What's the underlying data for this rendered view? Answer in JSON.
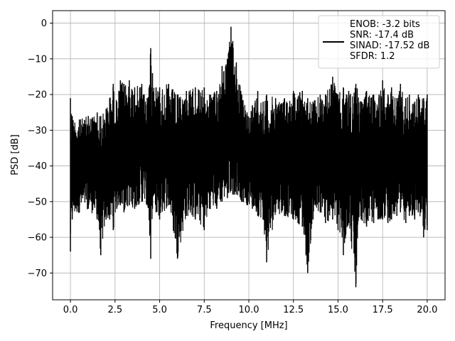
{
  "chart_data": {
    "type": "line",
    "title": "",
    "xlabel": "Frequency [MHz]",
    "ylabel": "PSD [dB]",
    "xlim": [
      -1.0,
      21.0
    ],
    "ylim": [
      -77.5,
      3.5
    ],
    "xticks": [
      0.0,
      2.5,
      5.0,
      7.5,
      10.0,
      12.5,
      15.0,
      17.5,
      20.0
    ],
    "xtick_labels": [
      "0.0",
      "2.5",
      "5.0",
      "7.5",
      "10.0",
      "12.5",
      "15.0",
      "17.5",
      "20.0"
    ],
    "yticks": [
      0,
      -10,
      -20,
      -30,
      -40,
      -50,
      -60,
      -70
    ],
    "ytick_labels": [
      "0",
      "−10",
      "−20",
      "−30",
      "−40",
      "−50",
      "−60",
      "−70"
    ],
    "grid": true,
    "legend": {
      "placement": "top-right",
      "entries": [
        "ENOB: -3.2 bits",
        "SNR: -17.4 dB",
        "SINAD: -17.52 dB",
        "SFDR: 1.2"
      ]
    },
    "series": [
      {
        "color": "#000000",
        "envelope": {
          "x": [
            0.0,
            0.1,
            0.5,
            1.0,
            1.5,
            1.7,
            2.0,
            2.2,
            2.4,
            2.6,
            2.8,
            3.0,
            3.3,
            3.6,
            4.0,
            4.3,
            4.5,
            4.6,
            4.8,
            5.0,
            5.5,
            6.0,
            6.5,
            7.0,
            7.5,
            7.8,
            8.2,
            8.5,
            8.8,
            9.0,
            9.1,
            9.3,
            9.6,
            9.9,
            10.2,
            10.5,
            10.8,
            11.0,
            11.5,
            12.0,
            12.5,
            13.0,
            13.3,
            13.6,
            14.0,
            14.3,
            14.7,
            15.0,
            15.3,
            15.6,
            16.0,
            16.3,
            16.6,
            17.0,
            17.3,
            17.5,
            17.8,
            18.0,
            18.3,
            18.5,
            18.8,
            19.0,
            19.3,
            19.5,
            19.8,
            20.0
          ],
          "upper": [
            -21,
            -26,
            -27,
            -26,
            -25,
            -26,
            -24,
            -21,
            -17,
            -22,
            -16,
            -17,
            -16,
            -18,
            -17,
            -21,
            -7,
            -14,
            -18,
            -18,
            -17,
            -20,
            -19,
            -18,
            -18,
            -20,
            -19,
            -12,
            -10,
            -1,
            -5,
            -11,
            -20,
            -25,
            -23,
            -19,
            -22,
            -20,
            -21,
            -21,
            -19,
            -19,
            -21,
            -22,
            -20,
            -20,
            -15,
            -20,
            -18,
            -19,
            -17,
            -22,
            -19,
            -20,
            -20,
            -16,
            -20,
            -18,
            -21,
            -17,
            -21,
            -20,
            -22,
            -20,
            -21,
            -20
          ],
          "lower": [
            -64,
            -55,
            -53,
            -52,
            -55,
            -65,
            -55,
            -55,
            -58,
            -52,
            -51,
            -53,
            -51,
            -52,
            -50,
            -51,
            -66,
            -52,
            -53,
            -55,
            -51,
            -66,
            -54,
            -55,
            -58,
            -52,
            -52,
            -50,
            -49,
            -47,
            -48,
            -48,
            -50,
            -51,
            -52,
            -54,
            -55,
            -67,
            -53,
            -54,
            -55,
            -57,
            -70,
            -55,
            -53,
            -56,
            -55,
            -58,
            -65,
            -56,
            -74,
            -55,
            -57,
            -56,
            -55,
            -55,
            -56,
            -55,
            -54,
            -53,
            -56,
            -54,
            -55,
            -53,
            -60,
            -58
          ]
        }
      }
    ]
  }
}
